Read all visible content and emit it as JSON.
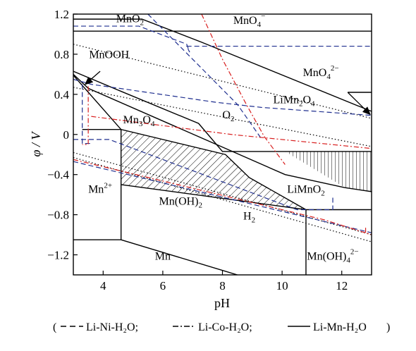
{
  "chart_data": {
    "type": "line",
    "title": "",
    "xlabel": "pH",
    "ylabel": "φ / V",
    "xlim": [
      3,
      13
    ],
    "ylim": [
      -1.4,
      1.2
    ],
    "xticks": [
      4,
      6,
      8,
      10,
      12
    ],
    "yticks": [
      1.2,
      0.8,
      0.4,
      0,
      -0.4,
      -0.8,
      -1.2
    ],
    "xtick_labels": [
      "4",
      "6",
      "8",
      "10",
      "12"
    ],
    "ytick_labels": [
      "1.2",
      "0.8",
      "0.4",
      "0",
      "−0.4",
      "−0.8",
      "−1.2"
    ],
    "grid": false,
    "legend": {
      "placement": "bottom",
      "open": "(",
      "close": ")",
      "entries": [
        {
          "label": "Li-Ni-H₂O;",
          "style": "dashed"
        },
        {
          "label": "Li-Co-H₂O;",
          "style": "dash-dot"
        },
        {
          "label": "Li-Mn-H₂O",
          "style": "solid"
        }
      ]
    },
    "colors": {
      "solid": "#000000",
      "li_ni": "#1f2f8f",
      "li_co": "#d81e1e",
      "dotted": "#000000",
      "hatch": "#000000"
    },
    "regions": [
      {
        "name": "MnO2",
        "base": "MnO",
        "sub": "2",
        "x": 4.9,
        "y": 1.12
      },
      {
        "name": "MnO4-",
        "base": "MnO",
        "sub": "4",
        "sup": "−",
        "x": 8.9,
        "y": 1.1
      },
      {
        "name": "MnOOH",
        "base": "MnOOH",
        "x": 4.2,
        "y": 0.76
      },
      {
        "name": "MnO4 2-",
        "base": "MnO",
        "sub": "4",
        "sup": "2−",
        "x": 11.3,
        "y": 0.58
      },
      {
        "name": "LiMn2O4",
        "base": "LiMn",
        "sub": "2",
        "after": "O",
        "sub2": "4",
        "x": 10.4,
        "y": 0.31
      },
      {
        "name": "O2",
        "base": "O",
        "sub": "2",
        "x": 8.2,
        "y": 0.16
      },
      {
        "name": "Mn3O4",
        "base": "Mn",
        "sub": "3",
        "after": "O",
        "sub2": "4",
        "x": 5.2,
        "y": 0.11
      },
      {
        "name": "Mn2+",
        "base": "Mn",
        "sup": "2+",
        "x": 3.9,
        "y": -0.58
      },
      {
        "name": "Mn(OH)2",
        "base": "Mn(OH)",
        "sub": "2",
        "x": 6.6,
        "y": -0.7
      },
      {
        "name": "LiMnO2",
        "base": "LiMnO",
        "sub": "2",
        "x": 10.8,
        "y": -0.58
      },
      {
        "name": "H2",
        "base": "H",
        "sub": "2",
        "x": 8.9,
        "y": -0.85
      },
      {
        "name": "Mn",
        "base": "Mn",
        "x": 6.0,
        "y": -1.25
      },
      {
        "name": "Mn(OH)4 2-",
        "base": "Mn(OH)",
        "sub": "4",
        "sup": "2−",
        "x": 11.7,
        "y": -1.25
      }
    ],
    "series": [
      {
        "style": "solid",
        "points": [
          [
            3,
            1.03
          ],
          [
            13,
            1.03
          ]
        ]
      },
      {
        "style": "solid",
        "points": [
          [
            3,
            1.15
          ],
          [
            5.3,
            1.15
          ],
          [
            7.3,
            0.92
          ],
          [
            13,
            0.23
          ]
        ]
      },
      {
        "style": "solid",
        "points": [
          [
            12.2,
            0.42
          ],
          [
            13,
            0.42
          ]
        ]
      },
      {
        "style": "solid",
        "points": [
          [
            3,
            0.63
          ],
          [
            4.6,
            0.43
          ],
          [
            7.2,
            0.11
          ],
          [
            8.0,
            -0.17
          ],
          [
            13,
            -0.17
          ]
        ]
      },
      {
        "style": "solid",
        "points": [
          [
            3,
            0.6
          ],
          [
            3.5,
            0.46
          ],
          [
            7.8,
            -0.1
          ],
          [
            10.1,
            -0.4
          ],
          [
            12.1,
            -0.53
          ],
          [
            13,
            -0.57
          ]
        ]
      },
      {
        "style": "solid",
        "points": [
          [
            3,
            0.59
          ],
          [
            4.6,
            0.05
          ],
          [
            8.1,
            -0.2
          ],
          [
            8.9,
            -0.43
          ],
          [
            10.8,
            -0.75
          ],
          [
            13,
            -0.75
          ]
        ]
      },
      {
        "style": "solid",
        "points": [
          [
            3.3,
            0.05
          ],
          [
            4.6,
            0.05
          ]
        ]
      },
      {
        "style": "solid",
        "points": [
          [
            4.6,
            0.05
          ],
          [
            4.6,
            -1.05
          ]
        ]
      },
      {
        "style": "solid",
        "points": [
          [
            3,
            -1.05
          ],
          [
            4.6,
            -1.05
          ]
        ]
      },
      {
        "style": "solid",
        "points": [
          [
            4.6,
            -1.05
          ],
          [
            8.5,
            -1.4
          ]
        ]
      },
      {
        "style": "solid",
        "points": [
          [
            4.6,
            -0.5
          ],
          [
            10.8,
            -0.75
          ]
        ]
      },
      {
        "style": "solid",
        "points": [
          [
            10.8,
            -0.75
          ],
          [
            10.8,
            -1.4
          ]
        ]
      },
      {
        "style": "dotted",
        "points": [
          [
            3,
            0.9
          ],
          [
            13,
            0.16
          ]
        ]
      },
      {
        "style": "dotted",
        "points": [
          [
            3,
            0.47
          ],
          [
            13,
            -0.12
          ]
        ]
      },
      {
        "style": "dotted",
        "points": [
          [
            3,
            -0.18
          ],
          [
            13,
            -1.0
          ]
        ]
      },
      {
        "style": "dotted",
        "points": [
          [
            3,
            -0.23
          ],
          [
            13,
            -1.07
          ]
        ]
      },
      {
        "style": "dashed",
        "color": "li_ni",
        "points": [
          [
            3,
            1.08
          ],
          [
            5.2,
            1.08
          ],
          [
            6.8,
            0.9
          ],
          [
            6.9,
            0.82
          ],
          [
            6.8,
            0.88
          ],
          [
            13,
            0.88
          ]
        ]
      },
      {
        "style": "dashed",
        "color": "li_ni",
        "points": [
          [
            5.5,
            1.2
          ],
          [
            7.0,
            0.75
          ],
          [
            8.5,
            0.3
          ],
          [
            9.3,
            -0.04
          ]
        ]
      },
      {
        "style": "dashed",
        "color": "li_ni",
        "points": [
          [
            3,
            0.55
          ],
          [
            3.6,
            0.5
          ],
          [
            7.8,
            0.32
          ],
          [
            9.3,
            0.27
          ],
          [
            13,
            0.19
          ]
        ]
      },
      {
        "style": "dashed",
        "color": "li_ni",
        "points": [
          [
            3.3,
            0.5
          ],
          [
            3.3,
            -0.09
          ],
          [
            3.6,
            -0.09
          ]
        ]
      },
      {
        "style": "dashed",
        "color": "li_ni",
        "points": [
          [
            3,
            -0.05
          ],
          [
            4.2,
            -0.05
          ],
          [
            10.5,
            -0.75
          ],
          [
            11.7,
            -0.75
          ],
          [
            11.7,
            -0.62
          ]
        ]
      },
      {
        "style": "dashed",
        "color": "li_ni",
        "points": [
          [
            3,
            -0.27
          ],
          [
            13,
            -0.98
          ]
        ]
      },
      {
        "style": "dash-dot",
        "color": "li_co",
        "points": [
          [
            7.3,
            1.2
          ],
          [
            8.0,
            0.75
          ],
          [
            8.8,
            0.3
          ],
          [
            9.4,
            -0.02
          ],
          [
            10.1,
            -0.3
          ]
        ]
      },
      {
        "style": "dash-dot",
        "color": "li_co",
        "points": [
          [
            3.5,
            0.48
          ],
          [
            3.5,
            -0.1
          ],
          [
            3.3,
            -0.1
          ]
        ]
      },
      {
        "style": "dash-dot",
        "color": "li_co",
        "points": [
          [
            3.6,
            0.18
          ],
          [
            8.3,
            0.0
          ],
          [
            13,
            -0.14
          ]
        ]
      },
      {
        "style": "dash-dot",
        "color": "li_co",
        "points": [
          [
            3,
            -0.25
          ],
          [
            11.4,
            -0.85
          ],
          [
            13,
            -1.0
          ]
        ]
      },
      {
        "style": "dash-dot",
        "color": "li_co",
        "points": [
          [
            12.8,
            -0.93
          ],
          [
            12.8,
            -0.98
          ]
        ]
      }
    ],
    "hatched_regions": [
      {
        "points": [
          [
            4.6,
            0.05
          ],
          [
            8.1,
            -0.2
          ],
          [
            8.9,
            -0.43
          ],
          [
            10.8,
            -0.75
          ],
          [
            4.6,
            -0.5
          ]
        ]
      },
      {
        "points": [
          [
            10.1,
            -0.17
          ],
          [
            13,
            -0.17
          ],
          [
            13,
            -0.57
          ],
          [
            12.1,
            -0.53
          ]
        ]
      }
    ],
    "arrows": [
      {
        "from": [
          3.9,
          0.63
        ],
        "to": [
          3.4,
          0.5
        ]
      },
      {
        "from": [
          12.2,
          0.42
        ],
        "to": [
          12.95,
          0.2
        ]
      }
    ]
  }
}
